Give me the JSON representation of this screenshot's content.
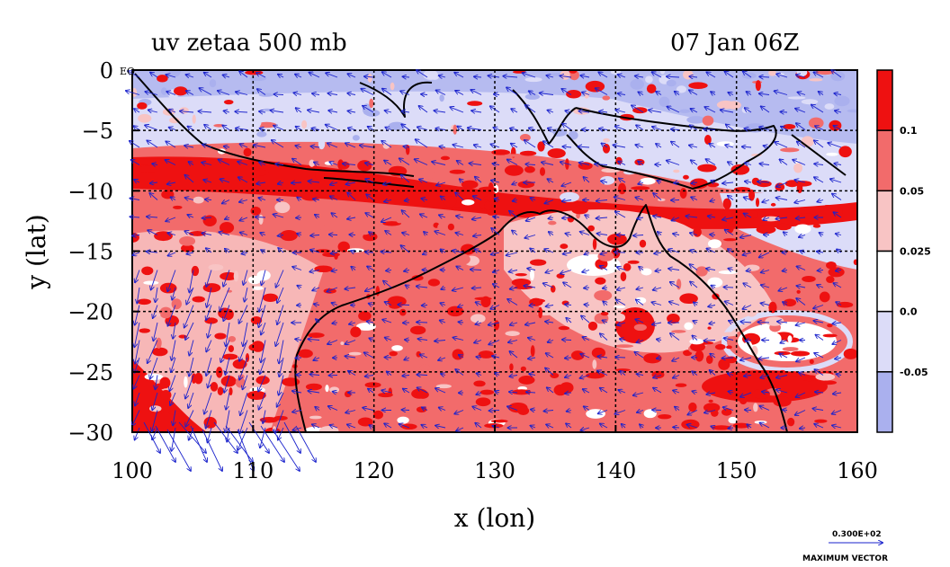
{
  "chart_data": {
    "type": "heatmap",
    "title": "uv zetaa 500 mb",
    "timestamp": "07 Jan 06Z",
    "xlabel": "x (lon)",
    "ylabel": "y (lat)",
    "xlim": [
      100,
      160
    ],
    "ylim": [
      -30,
      0
    ],
    "x_ticks": [
      100,
      110,
      120,
      130,
      140,
      150,
      160
    ],
    "y_ticks": [
      {
        "value": 0,
        "label": "0"
      },
      {
        "value": -5,
        "label": "−5"
      },
      {
        "value": -10,
        "label": "−10"
      },
      {
        "value": -15,
        "label": "−15"
      },
      {
        "value": -20,
        "label": "−20"
      },
      {
        "value": -25,
        "label": "−25"
      },
      {
        "value": -30,
        "label": "−30"
      }
    ],
    "x_tick_labels": [
      "100",
      "110",
      "120",
      "130",
      "140",
      "150",
      "160"
    ],
    "corner_label": "EQ",
    "grid": true,
    "colorbar": {
      "placement": "right",
      "bins": [
        {
          "range": "> 0.1",
          "color": "#ee1111"
        },
        {
          "range": "0.05 – 0.1",
          "color": "#f26b6b"
        },
        {
          "range": "0.025 – 0.05",
          "color": "#f8c4c4"
        },
        {
          "range": "0.0 – 0.025",
          "color": "#ffffff"
        },
        {
          "range": "-0.05 – 0.0",
          "color": "#dcdcf8"
        },
        {
          "range": "< -0.05",
          "color": "#aab0ee"
        }
      ],
      "labels": [
        "0.1",
        "0.05",
        "0.025",
        "0.0",
        "-0.05"
      ]
    },
    "vector_reference": {
      "value_label": "0.300E+02",
      "caption": "MAXIMUM VECTOR"
    },
    "colors": {
      "strong_positive": "#ee1111",
      "positive": "#f26b6b",
      "weak_positive": "#f8c4c4",
      "neutral": "#ffffff",
      "weak_negative": "#dcdcf8",
      "negative": "#aab0ee",
      "vectors": "#1a22cc",
      "coastline": "#000000"
    }
  }
}
